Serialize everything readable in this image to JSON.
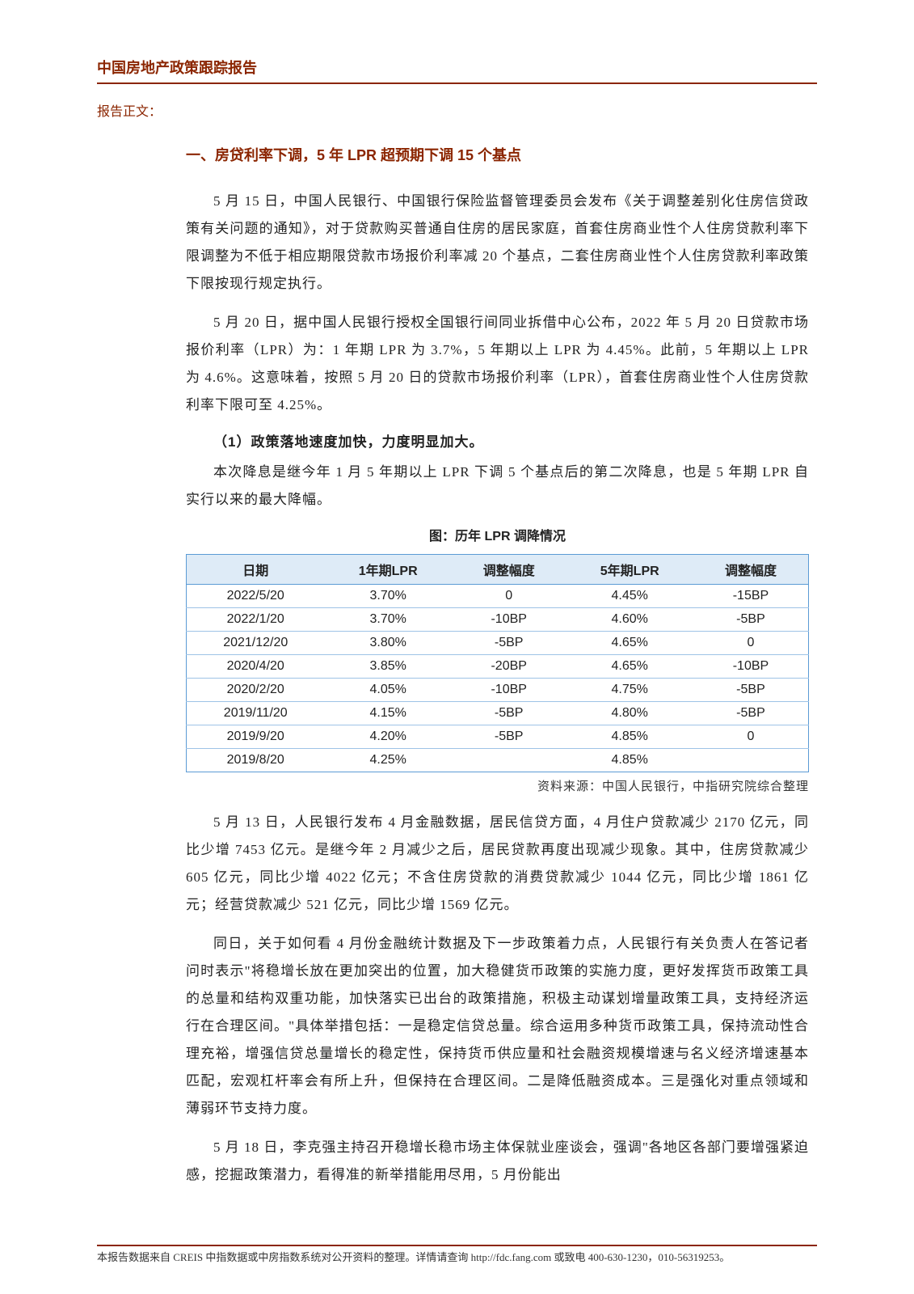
{
  "header": {
    "title": "中国房地产政策跟踪报告"
  },
  "label": "报告正文：",
  "section": {
    "heading": "一、房贷利率下调，5 年 LPR 超预期下调 15 个基点",
    "para1": "5 月 15 日，中国人民银行、中国银行保险监督管理委员会发布《关于调整差别化住房信贷政策有关问题的通知》，对于贷款购买普通自住房的居民家庭，首套住房商业性个人住房贷款利率下限调整为不低于相应期限贷款市场报价利率减 20 个基点，二套住房商业性个人住房贷款利率政策下限按现行规定执行。",
    "para2": "5 月 20 日，据中国人民银行授权全国银行间同业拆借中心公布，2022 年 5 月 20 日贷款市场报价利率（LPR）为：1 年期 LPR 为 3.7%，5 年期以上 LPR 为 4.45%。此前，5 年期以上 LPR 为 4.6%。这意味着，按照 5 月 20 日的贷款市场报价利率（LPR），首套住房商业性个人住房贷款利率下限可至 4.25%。",
    "sub1": "（1）政策落地速度加快，力度明显加大。",
    "para3": "本次降息是继今年 1 月 5 年期以上 LPR 下调 5 个基点后的第二次降息，也是 5 年期 LPR 自实行以来的最大降幅。",
    "chart_title": "图：历年 LPR 调降情况",
    "para4": "5 月 13 日，人民银行发布 4 月金融数据，居民信贷方面，4 月住户贷款减少 2170 亿元，同比少增 7453 亿元。是继今年 2 月减少之后，居民贷款再度出现减少现象。其中，住房贷款减少 605 亿元，同比少增 4022 亿元；不含住房贷款的消费贷款减少 1044 亿元，同比少增 1861 亿元；经营贷款减少 521 亿元，同比少增 1569 亿元。",
    "para5": "同日，关于如何看 4 月份金融统计数据及下一步政策着力点，人民银行有关负责人在答记者问时表示\"将稳增长放在更加突出的位置，加大稳健货币政策的实施力度，更好发挥货币政策工具的总量和结构双重功能，加快落实已出台的政策措施，积极主动谋划增量政策工具，支持经济运行在合理区间。\"具体举措包括：一是稳定信贷总量。综合运用多种货币政策工具，保持流动性合理充裕，增强信贷总量增长的稳定性，保持货币供应量和社会融资规模增速与名义经济增速基本匹配，宏观杠杆率会有所上升，但保持在合理区间。二是降低融资成本。三是强化对重点领域和薄弱环节支持力度。",
    "para6": "5 月 18 日，李克强主持召开稳增长稳市场主体保就业座谈会，强调\"各地区各部门要增强紧迫感，挖掘政策潜力，看得准的新举措能用尽用，5 月份能出"
  },
  "table": {
    "columns": [
      "日期",
      "1年期LPR",
      "调整幅度",
      "5年期LPR",
      "调整幅度"
    ],
    "rows": [
      [
        "2022/5/20",
        "3.70%",
        "0",
        "4.45%",
        "-15BP"
      ],
      [
        "2022/1/20",
        "3.70%",
        "-10BP",
        "4.60%",
        "-5BP"
      ],
      [
        "2021/12/20",
        "3.80%",
        "-5BP",
        "4.65%",
        "0"
      ],
      [
        "2020/4/20",
        "3.85%",
        "-20BP",
        "4.65%",
        "-10BP"
      ],
      [
        "2020/2/20",
        "4.05%",
        "-10BP",
        "4.75%",
        "-5BP"
      ],
      [
        "2019/11/20",
        "4.15%",
        "-5BP",
        "4.80%",
        "-5BP"
      ],
      [
        "2019/9/20",
        "4.20%",
        "-5BP",
        "4.85%",
        "0"
      ],
      [
        "2019/8/20",
        "4.25%",
        "",
        "4.85%",
        ""
      ]
    ],
    "header_bg": "#deebf7",
    "border_color": "#5b9bd5",
    "row_border": "#9ec3e6",
    "source": "资料来源：中国人民银行，中指研究院综合整理"
  },
  "footer": {
    "text": "本报告数据来自 CREIS 中指数据或中房指数系统对公开资料的整理。详情请查询 http://fdc.fang.com 或致电 400-630-1230，010-56319253。"
  }
}
